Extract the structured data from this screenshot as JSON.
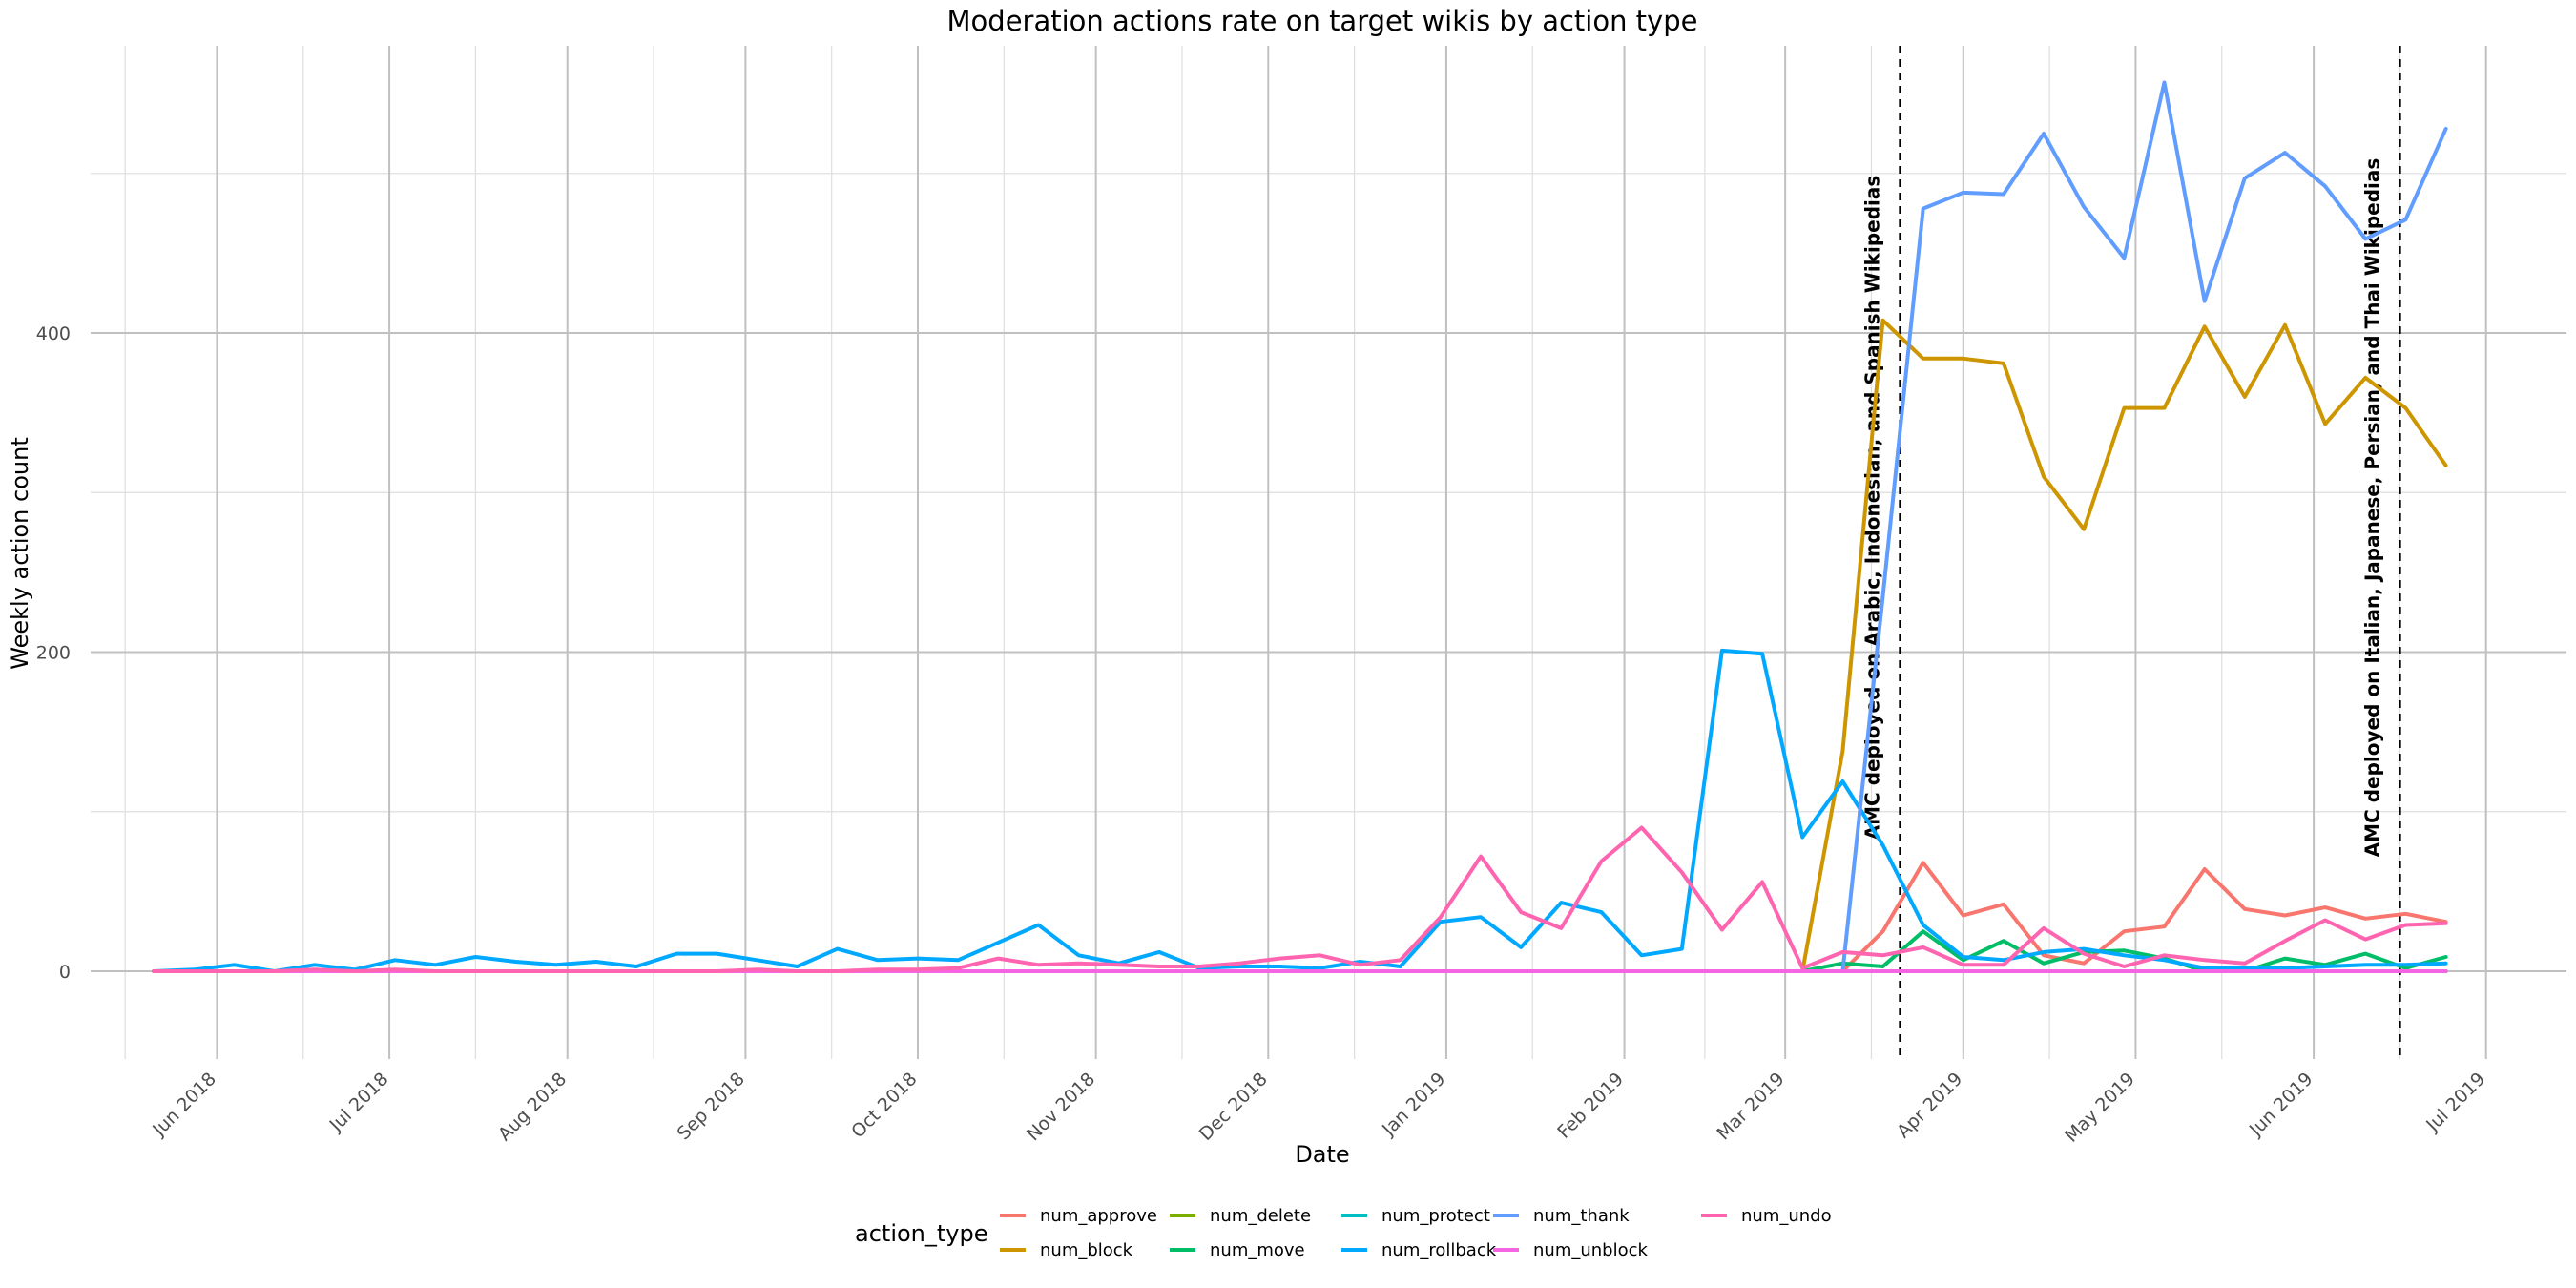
{
  "chart_data": {
    "type": "line",
    "title": "Moderation actions rate on target wikis by action type",
    "xlabel": "Date",
    "ylabel": "Weekly action count",
    "xlim": [
      "2018-05-10",
      "2019-07-15"
    ],
    "ylim": [
      -55,
      580
    ],
    "x_ticks": [
      {
        "date": "2018-06-01",
        "label": "Jun 2018"
      },
      {
        "date": "2018-07-01",
        "label": "Jul 2018"
      },
      {
        "date": "2018-08-01",
        "label": "Aug 2018"
      },
      {
        "date": "2018-09-01",
        "label": "Sep 2018"
      },
      {
        "date": "2018-10-01",
        "label": "Oct 2018"
      },
      {
        "date": "2018-11-01",
        "label": "Nov 2018"
      },
      {
        "date": "2018-12-01",
        "label": "Dec 2018"
      },
      {
        "date": "2019-01-01",
        "label": "Jan 2019"
      },
      {
        "date": "2019-02-01",
        "label": "Feb 2019"
      },
      {
        "date": "2019-03-01",
        "label": "Mar 2019"
      },
      {
        "date": "2019-04-01",
        "label": "Apr 2019"
      },
      {
        "date": "2019-05-01",
        "label": "May 2019"
      },
      {
        "date": "2019-06-01",
        "label": "Jun 2019"
      },
      {
        "date": "2019-07-01",
        "label": "Jul 2019"
      }
    ],
    "y_ticks": [
      0,
      200,
      400
    ],
    "grid": true,
    "legend": {
      "title": "action_type",
      "position": "bottom"
    },
    "x": [
      "2018-05-21",
      "2018-05-28",
      "2018-06-04",
      "2018-06-11",
      "2018-06-18",
      "2018-06-25",
      "2018-07-02",
      "2018-07-09",
      "2018-07-16",
      "2018-07-23",
      "2018-07-30",
      "2018-08-06",
      "2018-08-13",
      "2018-08-20",
      "2018-08-27",
      "2018-09-03",
      "2018-09-10",
      "2018-09-17",
      "2018-09-24",
      "2018-10-01",
      "2018-10-08",
      "2018-10-15",
      "2018-10-22",
      "2018-10-29",
      "2018-11-05",
      "2018-11-12",
      "2018-11-19",
      "2018-11-26",
      "2018-12-03",
      "2018-12-10",
      "2018-12-17",
      "2018-12-24",
      "2018-12-31",
      "2019-01-07",
      "2019-01-14",
      "2019-01-21",
      "2019-01-28",
      "2019-02-04",
      "2019-02-11",
      "2019-02-18",
      "2019-02-25",
      "2019-03-04",
      "2019-03-11",
      "2019-03-18",
      "2019-03-25",
      "2019-04-01",
      "2019-04-08",
      "2019-04-15",
      "2019-04-22",
      "2019-04-29",
      "2019-05-06",
      "2019-05-13",
      "2019-05-20",
      "2019-05-27",
      "2019-06-03",
      "2019-06-10",
      "2019-06-17",
      "2019-06-24"
    ],
    "series": [
      {
        "name": "num_approve",
        "color": "#F8766D",
        "values": [
          0,
          0,
          0,
          0,
          0,
          0,
          0,
          0,
          0,
          0,
          0,
          0,
          0,
          0,
          0,
          0,
          0,
          0,
          0,
          0,
          0,
          0,
          0,
          0,
          0,
          0,
          0,
          0,
          0,
          0,
          0,
          0,
          0,
          0,
          0,
          0,
          0,
          0,
          0,
          0,
          0,
          0,
          0,
          25,
          68,
          35,
          42,
          10,
          5,
          25,
          28,
          64,
          39,
          35,
          40,
          33,
          36,
          31
        ]
      },
      {
        "name": "num_block",
        "color": "#CD9600",
        "values": [
          0,
          0,
          0,
          0,
          0,
          0,
          0,
          0,
          0,
          0,
          0,
          0,
          0,
          0,
          0,
          0,
          0,
          0,
          0,
          0,
          0,
          0,
          0,
          0,
          0,
          0,
          0,
          0,
          0,
          0,
          0,
          0,
          0,
          0,
          0,
          0,
          0,
          0,
          0,
          0,
          0,
          0,
          138,
          408,
          384,
          384,
          381,
          310,
          277,
          353,
          353,
          404,
          360,
          405,
          343,
          372,
          353,
          317
        ]
      },
      {
        "name": "num_delete",
        "color": "#7CAE00",
        "values": [
          0,
          0,
          0,
          0,
          0,
          0,
          0,
          0,
          0,
          0,
          0,
          0,
          0,
          0,
          0,
          0,
          0,
          0,
          0,
          0,
          0,
          0,
          0,
          0,
          0,
          0,
          0,
          0,
          0,
          0,
          0,
          0,
          0,
          0,
          0,
          0,
          0,
          0,
          0,
          0,
          0,
          0,
          0,
          0,
          0,
          0,
          0,
          0,
          0,
          0,
          0,
          0,
          0,
          0,
          0,
          0,
          0,
          0
        ]
      },
      {
        "name": "num_move",
        "color": "#00BE67",
        "values": [
          0,
          0,
          0,
          0,
          0,
          0,
          0,
          0,
          0,
          0,
          0,
          0,
          0,
          0,
          0,
          0,
          0,
          0,
          0,
          0,
          0,
          0,
          0,
          0,
          0,
          0,
          0,
          0,
          0,
          0,
          0,
          0,
          0,
          0,
          0,
          0,
          0,
          0,
          0,
          0,
          0,
          0,
          5,
          3,
          25,
          7,
          19,
          5,
          12,
          13,
          8,
          0,
          0,
          8,
          4,
          11,
          2,
          9
        ]
      },
      {
        "name": "num_protect",
        "color": "#00BFC4",
        "values": [
          0,
          0,
          0,
          0,
          0,
          0,
          0,
          0,
          0,
          0,
          0,
          0,
          0,
          0,
          0,
          0,
          0,
          0,
          0,
          0,
          0,
          0,
          0,
          0,
          0,
          0,
          0,
          0,
          0,
          0,
          0,
          0,
          0,
          0,
          0,
          0,
          0,
          0,
          0,
          0,
          0,
          0,
          0,
          0,
          0,
          0,
          0,
          0,
          0,
          0,
          0,
          0,
          0,
          0,
          0,
          0,
          0,
          0
        ]
      },
      {
        "name": "num_rollback",
        "color": "#00A9FF",
        "values": [
          0,
          1,
          4,
          0,
          4,
          1,
          7,
          4,
          9,
          6,
          4,
          6,
          3,
          11,
          11,
          7,
          3,
          14,
          7,
          8,
          7,
          18,
          29,
          10,
          5,
          12,
          2,
          3,
          3,
          2,
          6,
          3,
          31,
          34,
          15,
          43,
          37,
          10,
          14,
          201,
          199,
          84,
          119,
          79,
          29,
          9,
          7,
          12,
          14,
          10,
          7,
          2,
          2,
          2,
          3,
          4,
          4,
          5
        ]
      },
      {
        "name": "num_thank",
        "color": "#619CFF",
        "values": [
          0,
          0,
          0,
          0,
          0,
          0,
          0,
          0,
          0,
          0,
          0,
          0,
          0,
          0,
          0,
          0,
          0,
          0,
          0,
          0,
          0,
          0,
          0,
          0,
          0,
          0,
          0,
          0,
          0,
          0,
          0,
          0,
          0,
          0,
          0,
          0,
          0,
          0,
          0,
          0,
          0,
          0,
          0,
          235,
          478,
          488,
          487,
          525,
          479,
          447,
          557,
          420,
          497,
          513,
          492,
          459,
          471,
          528
        ]
      },
      {
        "name": "num_unblock",
        "color": "#F564E3",
        "values": [
          0,
          0,
          0,
          0,
          0,
          0,
          0,
          0,
          0,
          0,
          0,
          0,
          0,
          0,
          0,
          0,
          0,
          0,
          0,
          0,
          0,
          0,
          0,
          0,
          0,
          0,
          0,
          0,
          0,
          0,
          0,
          0,
          0,
          0,
          0,
          0,
          0,
          0,
          0,
          0,
          0,
          0,
          0,
          0,
          0,
          0,
          0,
          0,
          0,
          0,
          0,
          0,
          0,
          0,
          0,
          0,
          0,
          0
        ]
      },
      {
        "name": "num_undo",
        "color": "#FF64B0",
        "values": [
          0,
          0,
          0,
          0,
          1,
          0,
          1,
          0,
          0,
          0,
          0,
          0,
          0,
          0,
          0,
          1,
          0,
          0,
          1,
          1,
          2,
          8,
          4,
          5,
          4,
          3,
          3,
          5,
          8,
          10,
          4,
          7,
          34,
          72,
          37,
          27,
          69,
          90,
          62,
          26,
          56,
          2,
          12,
          10,
          15,
          4,
          4,
          27,
          11,
          3,
          10,
          7,
          5,
          19,
          32,
          20,
          29,
          30
        ]
      }
    ],
    "annotations": [
      {
        "date": "2019-03-21",
        "label": "AMC deployed on Arabic, Indonesian, and Spanish Wikipedias"
      },
      {
        "date": "2019-06-16",
        "label": "AMC deployed on Italian, Japanese, Persian, and Thai Wikipedias"
      }
    ]
  }
}
